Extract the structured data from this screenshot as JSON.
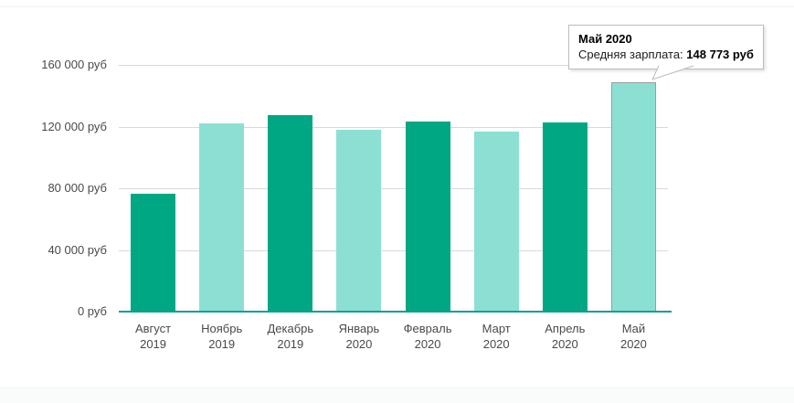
{
  "page": {
    "background": "#ffffff",
    "hairline_color": "#f2f2f2",
    "footer_band_color": "#fafbfb"
  },
  "chart_data": {
    "type": "bar",
    "title": "",
    "xlabel": "",
    "ylabel": "",
    "unit": "руб",
    "series_name": "Средняя зарплата",
    "categories": [
      {
        "month": "Август",
        "year": "2019"
      },
      {
        "month": "Ноябрь",
        "year": "2019"
      },
      {
        "month": "Декабрь",
        "year": "2019"
      },
      {
        "month": "Январь",
        "year": "2020"
      },
      {
        "month": "Февраль",
        "year": "2020"
      },
      {
        "month": "Март",
        "year": "2020"
      },
      {
        "month": "Апрель",
        "year": "2020"
      },
      {
        "month": "Май",
        "year": "2020"
      }
    ],
    "values": [
      76500,
      122000,
      127400,
      118000,
      123200,
      117000,
      122700,
      148773
    ],
    "ylim": [
      0,
      160000
    ],
    "yticks": [
      {
        "value": 160000,
        "label": "160 000 руб"
      },
      {
        "value": 120000,
        "label": "120 000 руб"
      },
      {
        "value": 80000,
        "label": "80 000 руб"
      },
      {
        "value": 40000,
        "label": "40 000 руб"
      },
      {
        "value": 0,
        "label": "0 руб"
      }
    ],
    "grid": "horizontal",
    "legend": "none",
    "colors": {
      "dark": "#00a783",
      "light": "#8ce0d3"
    },
    "color_pattern": [
      "dark",
      "light",
      "dark",
      "light",
      "dark",
      "light",
      "dark",
      "light"
    ],
    "highlighted_index": 7,
    "axis_line_color": "#12a096",
    "gridline_color": "#d9d9d9"
  },
  "tooltip": {
    "title": "Май 2020",
    "label": "Средняя зарплата: ",
    "value": "148 773 руб"
  }
}
